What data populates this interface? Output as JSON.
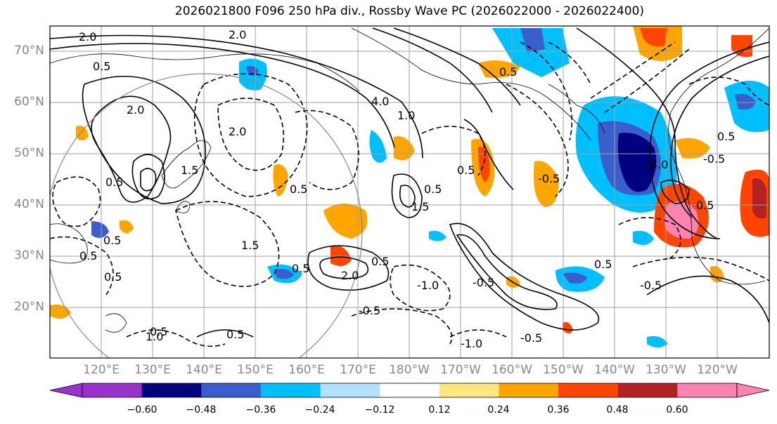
{
  "title": "2026021800 F096 250 hPa div., Rossby Wave PC (2026022000 - 2026022400)",
  "map": {
    "lat_labels": [
      "70°N",
      "60°N",
      "50°N",
      "40°N",
      "30°N",
      "20°N"
    ],
    "lon_labels": [
      "120°E",
      "130°E",
      "140°E",
      "150°E",
      "160°E",
      "170°E",
      "180°W",
      "170°W",
      "160°W",
      "150°W",
      "140°W",
      "130°W",
      "120°W"
    ],
    "contour_labels": [
      "2.0",
      "2.0",
      "2.0",
      "0.5",
      "0.5",
      "2.0",
      "1.5",
      "0.5",
      "0.5",
      "0.5",
      "1.5",
      "0.5",
      "0.5",
      "2.0",
      "0.5",
      "0.5",
      "1.0",
      "0.5",
      "-0.5",
      "-0.5",
      "-1.0",
      "-1.0",
      "-0.5",
      "0.5",
      "1.5",
      "0.5",
      "-0.5",
      "4.0",
      "1.0",
      "0.5",
      "0.5",
      "-0.5",
      "4.0",
      "0.5",
      "0.5",
      "-0.5"
    ]
  },
  "colorbar": {
    "ticks": [
      "−0.60",
      "−0.48",
      "−0.36",
      "−0.24",
      "−0.12",
      "0.12",
      "0.24",
      "0.36",
      "0.48",
      "0.60"
    ],
    "colors": [
      "#9932cc",
      "#000080",
      "#3a5fcd",
      "#00bfff",
      "#b0e2ff",
      "#ffffff",
      "#ffe680",
      "#ffa500",
      "#ff4500",
      "#b22222",
      "#ff83b0",
      "#ff83b0"
    ]
  }
}
